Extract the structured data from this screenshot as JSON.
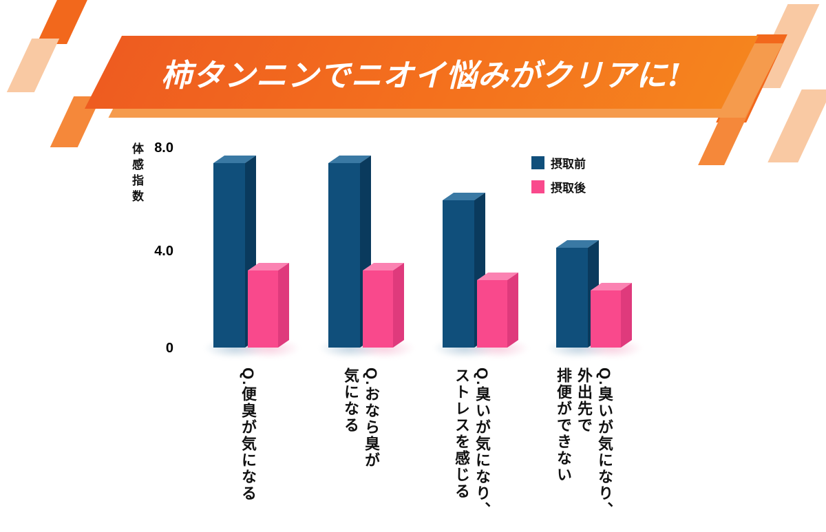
{
  "banner": {
    "title": "柿タンニンでニオイ悩みがクリアに!"
  },
  "colors": {
    "accent_orange": "#f2681c",
    "orange_light": "#f59b4d",
    "orange_mid": "#f5883a",
    "orange_pale": "#f9c9a3",
    "title_text": "#ffffff",
    "axis_text": "#000000"
  },
  "chart_data": {
    "type": "bar",
    "title": "柿タンニンでニオイ悩みがクリアに!",
    "ylabel": "体感指数",
    "ylim": [
      0,
      8.0
    ],
    "yticks": [
      {
        "value": 8.0,
        "label": "8.0"
      },
      {
        "value": 4.0,
        "label": "4.0"
      },
      {
        "value": 0,
        "label": "0"
      }
    ],
    "grid": false,
    "legend_position": "top-right",
    "categories": [
      "Q.便臭が気になる",
      "Q.おなら臭が気になる",
      "Q.臭いが気になり、ストレスを感じる",
      "Q.臭いが気になり、外出先で排便ができない"
    ],
    "categories_lines": [
      [
        "Q.便臭が気になる"
      ],
      [
        "Q.おなら臭が",
        "気になる"
      ],
      [
        "Q.臭いが気になり、",
        "ストレスを感じる"
      ],
      [
        "Q.臭いが気になり、",
        "外出先で",
        "排便ができない"
      ]
    ],
    "series": [
      {
        "name": "摂取前",
        "values": [
          7.4,
          7.4,
          5.9,
          4.0
        ],
        "color": "#104f7b",
        "color_top": "#3a79a4",
        "color_side": "#0a3a5d",
        "shadow_color": "#8fb0c9"
      },
      {
        "name": "摂取後",
        "values": [
          3.1,
          3.1,
          2.7,
          2.3
        ],
        "color": "#f9498c",
        "color_top": "#fb82b2",
        "color_side": "#df3a7c",
        "shadow_color": "#f2a9c6"
      }
    ]
  }
}
